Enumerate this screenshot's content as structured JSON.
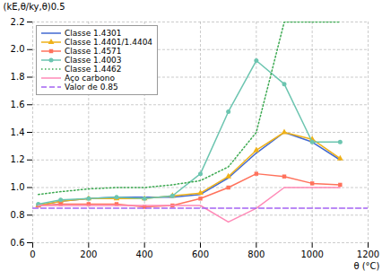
{
  "chart_data": {
    "type": "line",
    "xlabel": "θ (°C)",
    "ylabel": "(kE,θ/ky,θ)0.5",
    "xlim": [
      0,
      1200
    ],
    "ylim": [
      0.6,
      2.2
    ],
    "xticks": [
      0,
      200,
      400,
      600,
      800,
      1000,
      1200
    ],
    "yticks": [
      0.6,
      0.8,
      {
        "value": 1.0,
        "label": "1.0"
      },
      1.2,
      1.4,
      1.6,
      1.8,
      {
        "value": 2.0,
        "label": "2.0"
      },
      2.2
    ],
    "grid": true,
    "legend": "upper left",
    "series": [
      {
        "name": "Classe 1.4301",
        "line_style": "solid",
        "x": [
          20,
          100,
          200,
          300,
          400,
          500,
          600,
          700,
          800,
          900,
          1000,
          1100
        ],
        "values": [
          0.87,
          0.9,
          0.92,
          0.93,
          0.93,
          0.93,
          0.95,
          1.07,
          1.25,
          1.4,
          1.33,
          1.2
        ]
      },
      {
        "name": "Classe 1.4401/1.4404",
        "line_style": "solid",
        "marker": "triangle",
        "x": [
          20,
          100,
          200,
          300,
          400,
          500,
          600,
          700,
          800,
          900,
          1000,
          1100
        ],
        "values": [
          0.87,
          0.9,
          0.92,
          0.92,
          0.92,
          0.94,
          0.96,
          1.08,
          1.27,
          1.4,
          1.35,
          1.21
        ]
      },
      {
        "name": "Classe 1.4571",
        "line_style": "solid",
        "marker": "square",
        "x": [
          20,
          100,
          200,
          300,
          400,
          500,
          600,
          700,
          800,
          900,
          1000,
          1100
        ],
        "values": [
          0.87,
          0.88,
          0.88,
          0.88,
          0.86,
          0.87,
          0.92,
          1.0,
          1.1,
          1.08,
          1.03,
          1.02
        ]
      },
      {
        "name": "Classe 1.4003",
        "line_style": "solid",
        "marker": "circle",
        "x": [
          20,
          100,
          200,
          300,
          400,
          500,
          600,
          700,
          800,
          900,
          1000,
          1100
        ],
        "values": [
          0.88,
          0.91,
          0.92,
          0.93,
          0.92,
          0.94,
          1.1,
          1.55,
          1.92,
          1.75,
          1.33,
          1.33
        ]
      },
      {
        "name": "Classe 1.4462",
        "line_style": "dotted",
        "x": [
          20,
          100,
          200,
          300,
          400,
          500,
          600,
          700,
          800,
          900,
          1000,
          1100
        ],
        "values": [
          0.95,
          0.97,
          0.99,
          1.0,
          1.0,
          1.02,
          1.05,
          1.15,
          1.4,
          2.2,
          2.2,
          2.2
        ]
      },
      {
        "name": "Aço carbono",
        "line_style": "solid",
        "x": [
          20,
          100,
          200,
          300,
          400,
          500,
          600,
          700,
          800,
          900,
          1000,
          1100
        ],
        "values": [
          0.87,
          0.87,
          0.87,
          0.87,
          0.87,
          0.87,
          0.87,
          0.75,
          0.85,
          1.0,
          1.0,
          1.0
        ]
      },
      {
        "name": "Valor de 0.85",
        "line_style": "dashed",
        "x": [
          0,
          1200
        ],
        "values": [
          0.85,
          0.85
        ]
      }
    ]
  }
}
